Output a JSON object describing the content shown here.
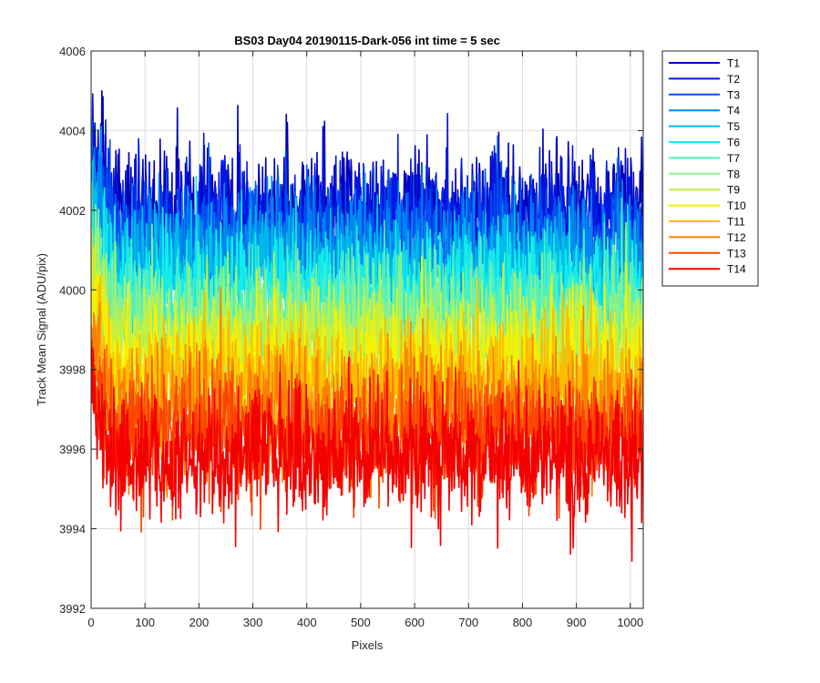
{
  "chart_data": {
    "type": "line",
    "title": "BS03 Day04 20190115-Dark-056 int time = 5 sec",
    "xlabel": "Pixels",
    "ylabel": "Track Mean Signal (ADU/pix)",
    "xlim": [
      0,
      1024
    ],
    "ylim": [
      3992,
      4006
    ],
    "xticks": [
      0,
      100,
      200,
      300,
      400,
      500,
      600,
      700,
      800,
      900,
      1000
    ],
    "yticks": [
      3992,
      3994,
      3996,
      3998,
      4000,
      4002,
      4004,
      4006
    ],
    "grid": true,
    "legend_location": "outside-top-right",
    "n_points": 1024,
    "series": [
      {
        "name": "T1",
        "color": "#0000b8",
        "level": 4002.0,
        "noise": 1.1
      },
      {
        "name": "T2",
        "color": "#0018e6",
        "level": 4001.7,
        "noise": 1.1
      },
      {
        "name": "T3",
        "color": "#0050f0",
        "level": 4001.2,
        "noise": 1.1
      },
      {
        "name": "T4",
        "color": "#0088f0",
        "level": 4000.8,
        "noise": 1.1
      },
      {
        "name": "T5",
        "color": "#00bce8",
        "level": 4000.3,
        "noise": 1.1
      },
      {
        "name": "T6",
        "color": "#14ecec",
        "level": 3999.9,
        "noise": 1.1
      },
      {
        "name": "T7",
        "color": "#50f0c0",
        "level": 3999.4,
        "noise": 1.1
      },
      {
        "name": "T8",
        "color": "#8cf08c",
        "level": 3999.0,
        "noise": 1.1
      },
      {
        "name": "T9",
        "color": "#c4f040",
        "level": 3998.6,
        "noise": 1.1
      },
      {
        "name": "T10",
        "color": "#f8f000",
        "level": 3998.1,
        "noise": 1.1
      },
      {
        "name": "T11",
        "color": "#fcbc00",
        "level": 3997.6,
        "noise": 1.1
      },
      {
        "name": "T12",
        "color": "#fc8000",
        "level": 3997.0,
        "noise": 1.1
      },
      {
        "name": "T13",
        "color": "#fc4400",
        "level": 3996.4,
        "noise": 1.1
      },
      {
        "name": "T14",
        "color": "#f40000",
        "level": 3995.8,
        "noise": 1.1
      }
    ]
  }
}
